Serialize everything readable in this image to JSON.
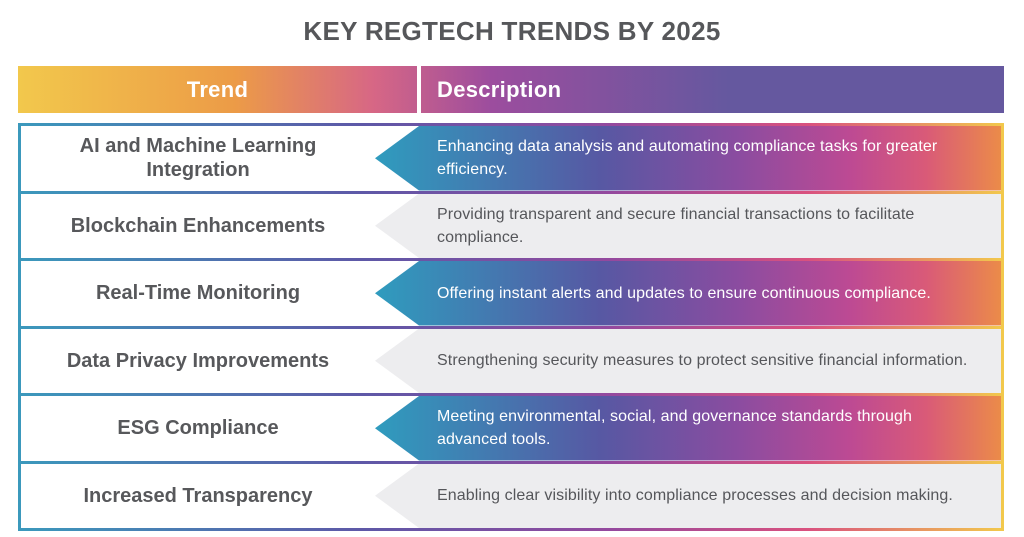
{
  "title": "KEY REGTECH TRENDS BY 2025",
  "table": {
    "columns": [
      "Trend",
      "Description"
    ],
    "rows": [
      {
        "trend": "AI and Machine Learning Integration",
        "description": "Enhancing data analysis and automating compliance tasks for greater efficiency.",
        "style": "gradient"
      },
      {
        "trend": "Blockchain Enhancements",
        "description": "Providing transparent and secure financial transactions to facilitate compliance.",
        "style": "gray"
      },
      {
        "trend": "Real-Time Monitoring",
        "description": "Offering instant alerts and updates to ensure continuous compliance.",
        "style": "gradient"
      },
      {
        "trend": "Data Privacy Improvements",
        "description": "Strengthening security measures to protect sensitive financial information.",
        "style": "gray"
      },
      {
        "trend": "ESG Compliance",
        "description": "Meeting environmental, social, and governance standards through advanced tools.",
        "style": "gradient"
      },
      {
        "trend": "Increased Transparency",
        "description": "Enabling clear visibility into compliance processes and decision making.",
        "style": "gray"
      }
    ]
  },
  "colors": {
    "title_text": "#56575A",
    "header_gradient": [
      "#F2C84C",
      "#EC9B47",
      "#D76785",
      "#9C4D9E",
      "#65589F"
    ],
    "row_gradient": [
      "#2F9CBE",
      "#5758A3",
      "#8B4CA0",
      "#BD4A93",
      "#D95A78",
      "#EB8B49"
    ],
    "border_gradient": [
      "#3B99BC",
      "#5E58A7",
      "#94499E",
      "#D9517F",
      "#F2C94C"
    ],
    "gray_row_bg": "#EDEDEF",
    "trend_text": "#57585B",
    "desc_text_dark": "#55565A",
    "desc_text_light": "#FFFFFF"
  },
  "chart_data": {
    "type": "table",
    "title": "KEY REGTECH TRENDS BY 2025",
    "columns": [
      "Trend",
      "Description"
    ],
    "rows": [
      [
        "AI and Machine Learning Integration",
        "Enhancing data analysis and automating compliance tasks for greater efficiency."
      ],
      [
        "Blockchain Enhancements",
        "Providing transparent and secure financial transactions to facilitate compliance."
      ],
      [
        "Real-Time Monitoring",
        "Offering instant alerts and updates to ensure continuous compliance."
      ],
      [
        "Data Privacy Improvements",
        "Strengthening security measures to protect sensitive financial information."
      ],
      [
        "ESG Compliance",
        "Meeting environmental, social, and governance standards through advanced tools."
      ],
      [
        "Increased Transparency",
        "Enabling clear visibility into compliance processes and decision making."
      ]
    ],
    "layout_hints": {
      "header_style": "yellow-orange-pink-purple gradient band",
      "odd_rows": "teal-indigo-purple-magenta-orange gradient arrow pointing left",
      "even_rows": "light gray arrow pointing left",
      "outer_border": "teal-to-yellow gradient frame"
    }
  }
}
